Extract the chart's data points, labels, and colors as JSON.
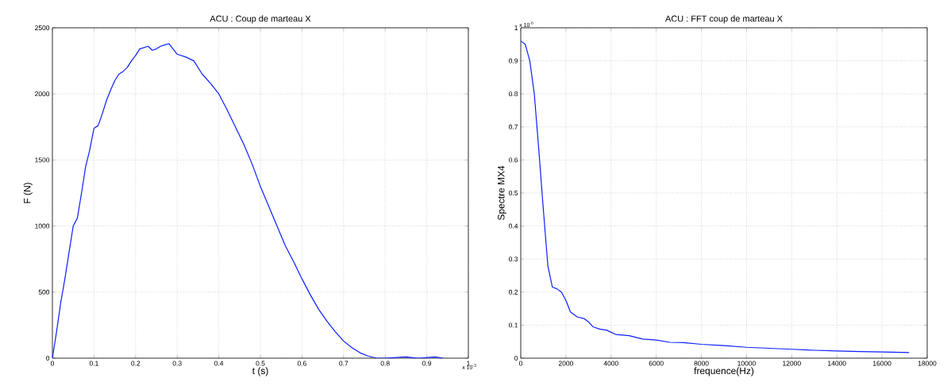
{
  "chart_data": [
    {
      "type": "line",
      "title": "ACU : Coup de marteau X",
      "xlabel": "t (s)",
      "ylabel": "F (N)",
      "annotations": [
        "x 10$^{-3}$"
      ],
      "x": [
        0,
        0.01,
        0.02,
        0.03,
        0.04,
        0.05,
        0.06,
        0.07,
        0.08,
        0.09,
        0.1,
        0.11,
        0.12,
        0.13,
        0.14,
        0.15,
        0.16,
        0.17,
        0.18,
        0.19,
        0.2,
        0.21,
        0.22,
        0.23,
        0.24,
        0.25,
        0.26,
        0.27,
        0.28,
        0.29,
        0.3,
        0.32,
        0.34,
        0.36,
        0.38,
        0.4,
        0.42,
        0.44,
        0.46,
        0.48,
        0.5,
        0.52,
        0.54,
        0.56,
        0.58,
        0.6,
        0.62,
        0.64,
        0.66,
        0.68,
        0.7,
        0.72,
        0.74,
        0.76,
        0.78,
        0.8,
        0.85,
        0.88,
        0.92,
        0.94
      ],
      "series": [
        {
          "color": "#0a1eff",
          "values": [
            0,
            200,
            420,
            600,
            800,
            1000,
            1060,
            1250,
            1450,
            1580,
            1740,
            1760,
            1850,
            1950,
            2030,
            2100,
            2150,
            2170,
            2200,
            2250,
            2290,
            2340,
            2350,
            2360,
            2330,
            2340,
            2360,
            2370,
            2380,
            2340,
            2300,
            2280,
            2250,
            2150,
            2080,
            2000,
            1880,
            1750,
            1620,
            1470,
            1300,
            1150,
            1000,
            850,
            730,
            600,
            480,
            370,
            280,
            200,
            130,
            80,
            40,
            15,
            0,
            0,
            10,
            0,
            10,
            0
          ]
        }
      ],
      "xlim": [
        0,
        1
      ],
      "ylim": [
        0,
        2500
      ],
      "xticks": [
        0,
        0.1,
        0.2,
        0.3,
        0.4,
        0.5,
        0.6,
        0.7,
        0.8,
        0.9,
        1
      ],
      "yticks": [
        0,
        500,
        1000,
        1500,
        2000,
        2500
      ],
      "grid": true,
      "marker": "none",
      "line_style": "solid"
    },
    {
      "type": "line",
      "title": "ACU : FFT coup de marteau X",
      "xlabel": "frequence(Hz)",
      "ylabel": "Spectre MX4",
      "annotations": [
        "x 10$^{-6}$"
      ],
      "x": [
        0,
        200,
        400,
        600,
        800,
        1000,
        1200,
        1400,
        1600,
        1800,
        2000,
        2200,
        2500,
        2800,
        3000,
        3200,
        3500,
        3800,
        4200,
        4800,
        5400,
        6000,
        6600,
        7200,
        8000,
        9000,
        10000,
        11000,
        12000,
        13000,
        14000,
        15000,
        16000,
        17200
      ],
      "series": [
        {
          "color": "#0a1eff",
          "values": [
            0.96,
            0.95,
            0.9,
            0.8,
            0.63,
            0.45,
            0.28,
            0.215,
            0.21,
            0.2,
            0.175,
            0.14,
            0.125,
            0.12,
            0.11,
            0.095,
            0.088,
            0.085,
            0.072,
            0.068,
            0.058,
            0.055,
            0.048,
            0.047,
            0.042,
            0.038,
            0.033,
            0.03,
            0.027,
            0.024,
            0.022,
            0.02,
            0.019,
            0.017
          ]
        }
      ],
      "xlim": [
        0,
        18000
      ],
      "ylim": [
        0,
        1
      ],
      "xticks": [
        0,
        2000,
        4000,
        6000,
        8000,
        10000,
        12000,
        14000,
        16000,
        18000
      ],
      "yticks": [
        0,
        0.1,
        0.2,
        0.3,
        0.4,
        0.5,
        0.6,
        0.7,
        0.8,
        0.9,
        1
      ],
      "grid": true,
      "marker": "none",
      "line_style": "solid"
    }
  ]
}
